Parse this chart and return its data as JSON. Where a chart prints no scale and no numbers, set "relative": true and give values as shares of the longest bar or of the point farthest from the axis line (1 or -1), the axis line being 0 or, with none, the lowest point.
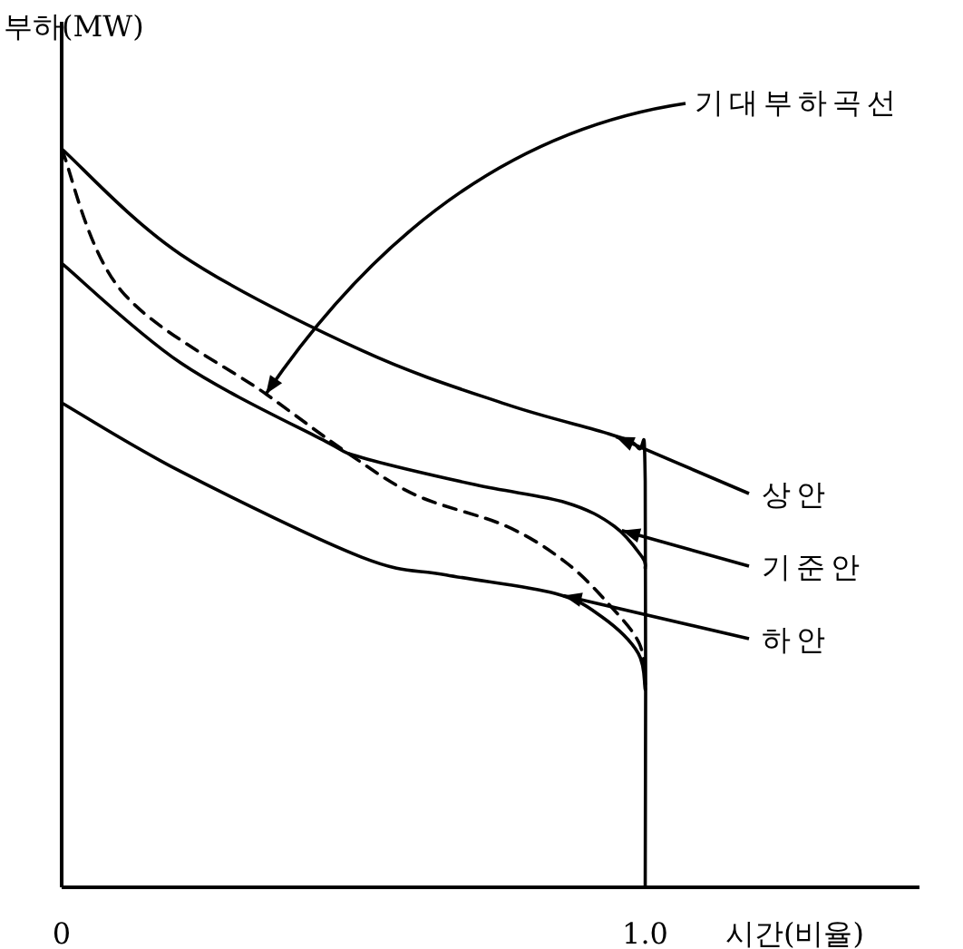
{
  "chart_data": {
    "type": "line",
    "relative": true,
    "ylabel": "부하(MW)",
    "xlabel": "시간(비율)",
    "xlim": [
      0,
      1.47
    ],
    "xticks": [
      0,
      {
        "value": 1,
        "label": "1.0"
      }
    ],
    "series": [
      {
        "color": "#000000",
        "line_style": "solid",
        "x": [
          0,
          0.204,
          0.514,
          0.762,
          0.938,
          0.988,
          1.0,
          1.0
        ],
        "values": [
          1.0,
          0.857,
          0.727,
          0.654,
          0.614,
          0.595,
          0.55,
          0
        ]
      },
      {
        "color": "#000000",
        "line_style": "solid",
        "x": [
          0,
          0.204,
          0.452,
          0.514,
          0.709,
          0.864,
          0.947,
          0.995,
          1.0
        ],
        "values": [
          0.845,
          0.71,
          0.604,
          0.582,
          0.545,
          0.521,
          0.489,
          0.447,
          0.432
        ]
      },
      {
        "color": "#000000",
        "line_style": "dashed",
        "x": [
          0,
          0.102,
          0.35,
          0.492,
          0.607,
          0.762,
          0.864,
          0.938,
          0.99,
          1.0
        ],
        "values": [
          1.0,
          0.808,
          0.668,
          0.587,
          0.531,
          0.489,
          0.44,
          0.383,
          0.33,
          0.275
        ]
      },
      {
        "color": "#000000",
        "line_style": "solid",
        "x": [
          0,
          0.204,
          0.514,
          0.659,
          0.845,
          0.926,
          0.988,
          1.0
        ],
        "values": [
          0.656,
          0.563,
          0.447,
          0.423,
          0.398,
          0.366,
          0.317,
          0.268
        ]
      }
    ],
    "annotations": [
      {
        "text": "기대부하곡선",
        "x": 0.35,
        "y": 0.668
      },
      {
        "text": "상안",
        "x": 0.95,
        "y": 0.61
      },
      {
        "text": "기준안",
        "x": 0.96,
        "y": 0.483
      },
      {
        "text": "하안",
        "x": 0.86,
        "y": 0.395
      }
    ]
  }
}
